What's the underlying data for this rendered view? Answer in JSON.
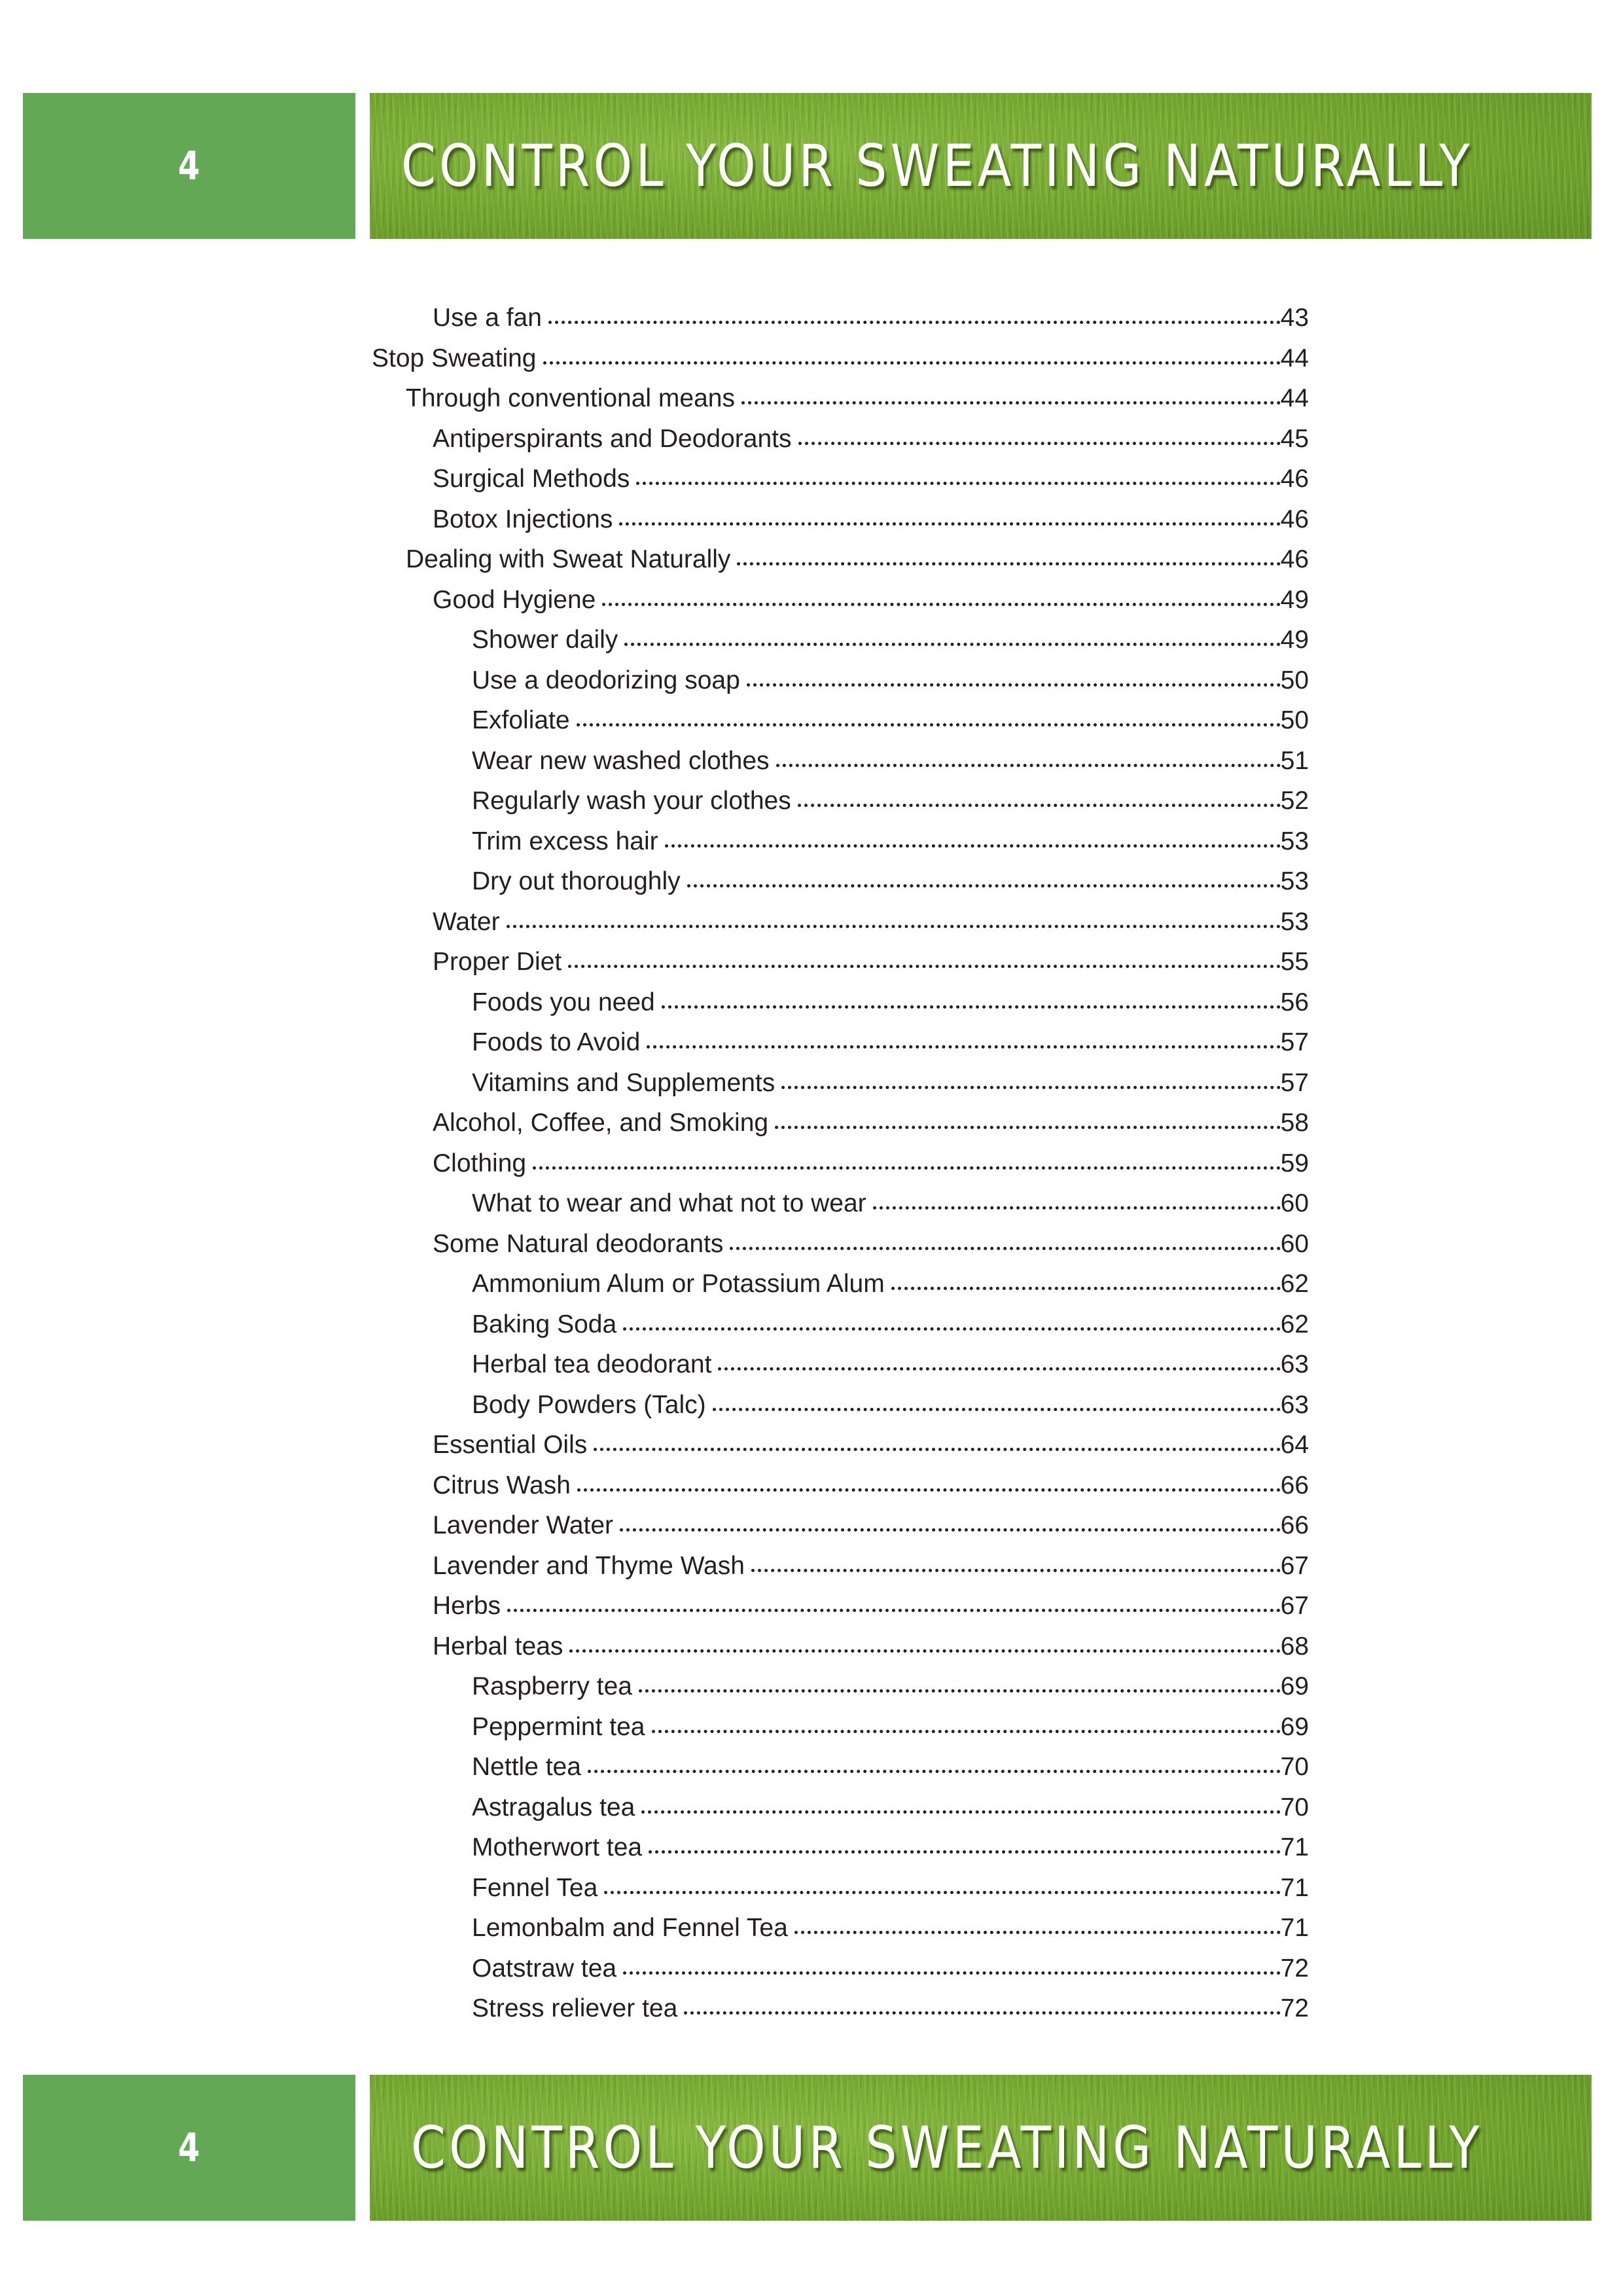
{
  "header": {
    "page_number": "4",
    "title": "CONTROL YOUR SWEATING NATURALLY"
  },
  "footer": {
    "page_number": "4",
    "title": "CONTROL YOUR SWEATING NATURALLY"
  },
  "colors": {
    "page_box": "#63a955",
    "banner": "#6fa32c",
    "text": "#231f20"
  },
  "toc": [
    {
      "label": "Use a fan",
      "page": "43",
      "level": 2
    },
    {
      "label": "Stop Sweating",
      "page": "44",
      "level": 0
    },
    {
      "label": "Through conventional means",
      "page": "44",
      "level": 1
    },
    {
      "label": "Antiperspirants and Deodorants",
      "page": "45",
      "level": 2
    },
    {
      "label": "Surgical Methods",
      "page": "46",
      "level": 2
    },
    {
      "label": "Botox Injections",
      "page": "46",
      "level": 2
    },
    {
      "label": "Dealing with Sweat Naturally",
      "page": "46",
      "level": 1
    },
    {
      "label": "Good Hygiene",
      "page": "49",
      "level": 2
    },
    {
      "label": "Shower daily",
      "page": "49",
      "level": 3
    },
    {
      "label": "Use a deodorizing soap",
      "page": "50",
      "level": 3
    },
    {
      "label": "Exfoliate",
      "page": "50",
      "level": 3
    },
    {
      "label": "Wear new washed clothes",
      "page": "51",
      "level": 3
    },
    {
      "label": "Regularly wash your clothes",
      "page": "52",
      "level": 3
    },
    {
      "label": "Trim excess hair",
      "page": "53",
      "level": 3
    },
    {
      "label": "Dry out thoroughly",
      "page": "53",
      "level": 3
    },
    {
      "label": "Water",
      "page": "53",
      "level": 2
    },
    {
      "label": "Proper Diet",
      "page": "55",
      "level": 2
    },
    {
      "label": "Foods you need",
      "page": "56",
      "level": 3
    },
    {
      "label": "Foods to Avoid",
      "page": "57",
      "level": 3
    },
    {
      "label": "Vitamins and Supplements",
      "page": "57",
      "level": 3
    },
    {
      "label": "Alcohol, Coffee, and Smoking",
      "page": "58",
      "level": 2
    },
    {
      "label": "Clothing",
      "page": "59",
      "level": 2
    },
    {
      "label": "What to wear and what not to wear",
      "page": "60",
      "level": 3
    },
    {
      "label": "Some Natural deodorants",
      "page": "60",
      "level": 2
    },
    {
      "label": "Ammonium Alum or Potassium Alum",
      "page": "62",
      "level": 3
    },
    {
      "label": "Baking Soda",
      "page": "62",
      "level": 3
    },
    {
      "label": "Herbal tea deodorant",
      "page": "63",
      "level": 3
    },
    {
      "label": "Body Powders (Talc)",
      "page": "63",
      "level": 3
    },
    {
      "label": "Essential Oils",
      "page": "64",
      "level": 2
    },
    {
      "label": "Citrus Wash",
      "page": "66",
      "level": 2
    },
    {
      "label": "Lavender Water",
      "page": "66",
      "level": 2
    },
    {
      "label": "Lavender and Thyme Wash",
      "page": "67",
      "level": 2
    },
    {
      "label": "Herbs",
      "page": "67",
      "level": 2
    },
    {
      "label": "Herbal teas",
      "page": "68",
      "level": 2
    },
    {
      "label": "Raspberry tea",
      "page": "69",
      "level": 3
    },
    {
      "label": "Peppermint tea",
      "page": "69",
      "level": 3
    },
    {
      "label": "Nettle tea",
      "page": "70",
      "level": 3
    },
    {
      "label": "Astragalus tea",
      "page": "70",
      "level": 3
    },
    {
      "label": "Motherwort tea",
      "page": "71",
      "level": 3
    },
    {
      "label": "Fennel Tea",
      "page": "71",
      "level": 3
    },
    {
      "label": "Lemonbalm and Fennel Tea",
      "page": "71",
      "level": 3
    },
    {
      "label": "Oatstraw tea",
      "page": "72",
      "level": 3
    },
    {
      "label": "Stress reliever tea",
      "page": "72",
      "level": 3
    }
  ]
}
